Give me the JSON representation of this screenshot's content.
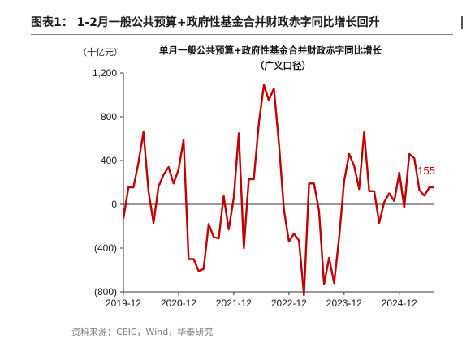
{
  "figure": {
    "title": "图表1： 1-2月一般公共预算+政府性基金合并财政赤字同比增长回升",
    "source": "资料来源：CEIC，Wind，华泰研究"
  },
  "chart_data": {
    "type": "line",
    "title": "单月一般公共预算+政府性基金合并财政赤字同比增长",
    "subtitle": "（广义口径）",
    "unit": "（十亿元）",
    "ylim": [
      -800,
      1200
    ],
    "yticks": [
      1200,
      800,
      400,
      0,
      -400,
      -800
    ],
    "ytick_labels": [
      "1,200",
      "800",
      "400",
      "0",
      "(400)",
      "(800)"
    ],
    "xtick_labels": [
      "2019-12",
      "2020-12",
      "2021-12",
      "2022-12",
      "2023-12",
      "2024-12"
    ],
    "xtick_index": [
      0,
      11,
      22,
      33,
      44,
      55
    ],
    "grid": false,
    "line_color": "#c00000",
    "last_label": "155",
    "series": [
      {
        "values": [
          -130,
          155,
          155,
          380,
          660,
          120,
          -170,
          160,
          270,
          340,
          190,
          320,
          590,
          -500,
          -500,
          -610,
          -590,
          -180,
          -300,
          -310,
          75,
          -230,
          60,
          650,
          -400,
          230,
          230,
          740,
          1090,
          950,
          1060,
          560,
          -50,
          -340,
          -270,
          -330,
          -830,
          190,
          190,
          -60,
          -730,
          -490,
          -720,
          -310,
          210,
          460,
          350,
          140,
          660,
          120,
          120,
          -170,
          20,
          100,
          30,
          290,
          -30,
          460,
          420,
          130,
          80,
          155,
          155
        ]
      }
    ]
  }
}
